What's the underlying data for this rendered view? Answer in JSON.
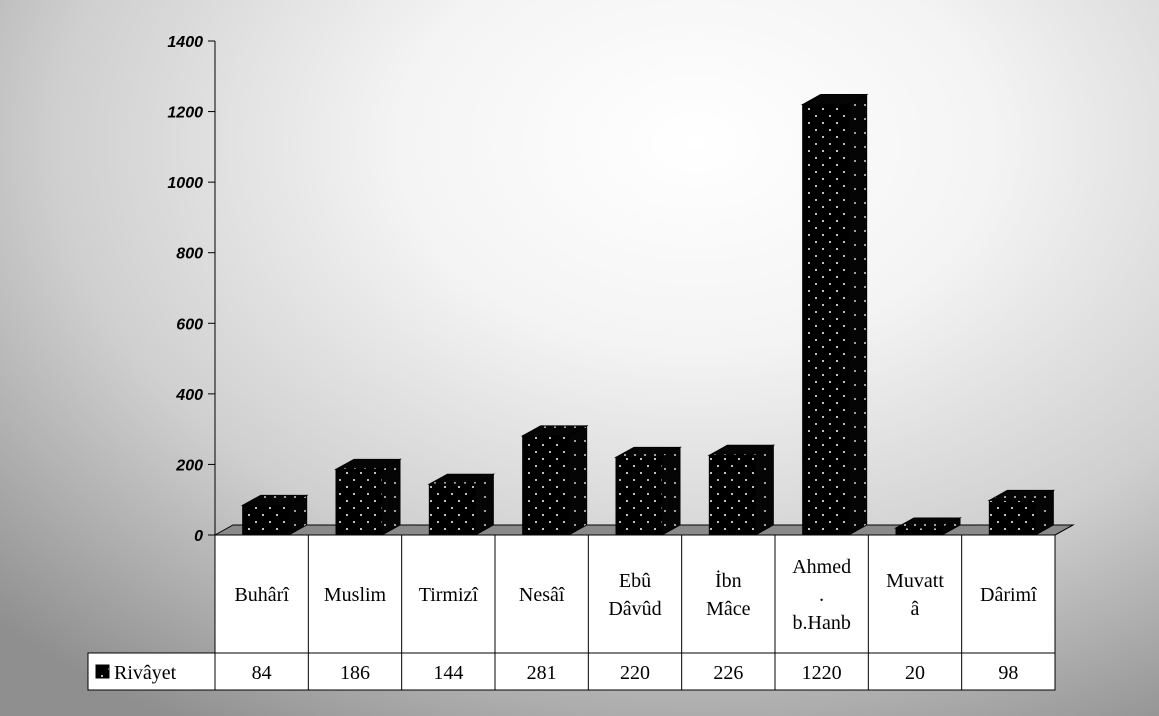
{
  "chart_data": {
    "type": "bar",
    "categories": [
      [
        "Buhârî"
      ],
      [
        "Muslim"
      ],
      [
        "Tirmizî"
      ],
      [
        "Nesâî"
      ],
      [
        "Ebû",
        "Dâvûd"
      ],
      [
        "İbn",
        "Mâce"
      ],
      [
        "Ahmed",
        ".",
        "b.Hanb"
      ],
      [
        "Muvatt",
        "â"
      ],
      [
        "Dârimî"
      ]
    ],
    "series": [
      {
        "name": "Rivâyet",
        "values": [
          84,
          186,
          144,
          281,
          220,
          226,
          1220,
          20,
          98
        ]
      }
    ],
    "ylim": [
      0,
      1400
    ],
    "yticks": [
      "0",
      "200",
      "400",
      "600",
      "800",
      "1000",
      "1200",
      "1400"
    ],
    "bar_style": "3d-dotted",
    "bar_color": "#000000",
    "dot_color": "#bfbfbf",
    "data_table": true,
    "legend_position": "table-left"
  }
}
